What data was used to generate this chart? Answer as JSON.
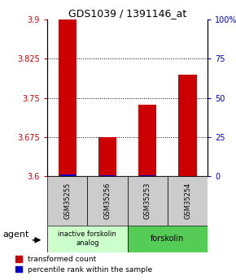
{
  "title": "GDS1039 / 1391146_at",
  "samples": [
    "GSM35255",
    "GSM35256",
    "GSM35253",
    "GSM35254"
  ],
  "red_values": [
    3.9,
    3.675,
    3.737,
    3.795
  ],
  "blue_values": [
    3.603,
    3.602,
    3.602,
    3.601
  ],
  "ylim": [
    3.6,
    3.9
  ],
  "yticks_left": [
    3.6,
    3.675,
    3.75,
    3.825,
    3.9
  ],
  "yticks_right": [
    0,
    25,
    50,
    75,
    100
  ],
  "ytick_labels_right": [
    "0",
    "25",
    "50",
    "75",
    "100%"
  ],
  "bar_width": 0.45,
  "red_color": "#cc0000",
  "blue_color": "#0000cc",
  "group1_label": "inactive forskolin\nanalog",
  "group2_label": "forskolin",
  "group1_color": "#ccffcc",
  "group2_color": "#55cc55",
  "sample_box_color": "#cccccc",
  "legend_red": "transformed count",
  "legend_blue": "percentile rank within the sample",
  "agent_label": "agent"
}
